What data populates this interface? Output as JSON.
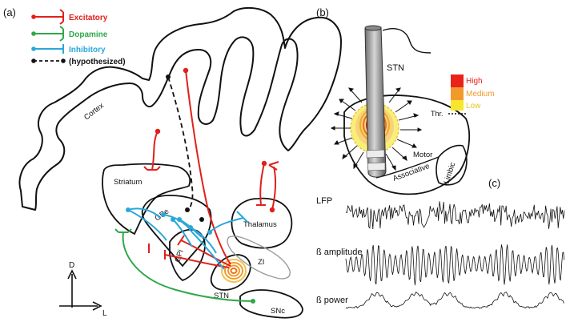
{
  "panels": {
    "a": "(a)",
    "b": "(b)",
    "c": "(c)"
  },
  "legend": [
    {
      "label": "Excitatory",
      "color": "#e0201c"
    },
    {
      "label": "Dopamine",
      "color": "#2ea84a"
    },
    {
      "label": "Inhibitory",
      "color": "#2aa8d8"
    },
    {
      "label": "(hypothesized)",
      "color": "#111111"
    }
  ],
  "regions": {
    "cortex": "Cortex",
    "striatum": "Striatum",
    "gpe": "GPe",
    "gpi": "GPi",
    "stn": "STN",
    "thalamus": "Thalamus",
    "zi": "ZI",
    "snc": "SNc"
  },
  "axes": {
    "dorsal": "D",
    "lateral": "L"
  },
  "panel_b": {
    "stn": "STN",
    "motor": "Motor",
    "associative": "Associative",
    "limbic": "Limbic",
    "threshold": "Thr.",
    "scale": [
      {
        "label": "High",
        "color": "#e8231c"
      },
      {
        "label": "Medium",
        "color": "#f39a2c"
      },
      {
        "label": "Low",
        "color": "#f7e62e"
      }
    ]
  },
  "panel_c": {
    "traces": [
      "LFP",
      "ß amplitude",
      "ß power"
    ]
  },
  "colors": {
    "excitatory": "#e0201c",
    "dopamine": "#2ea84a",
    "inhibitory": "#2aa8d8",
    "outline": "#111111"
  }
}
